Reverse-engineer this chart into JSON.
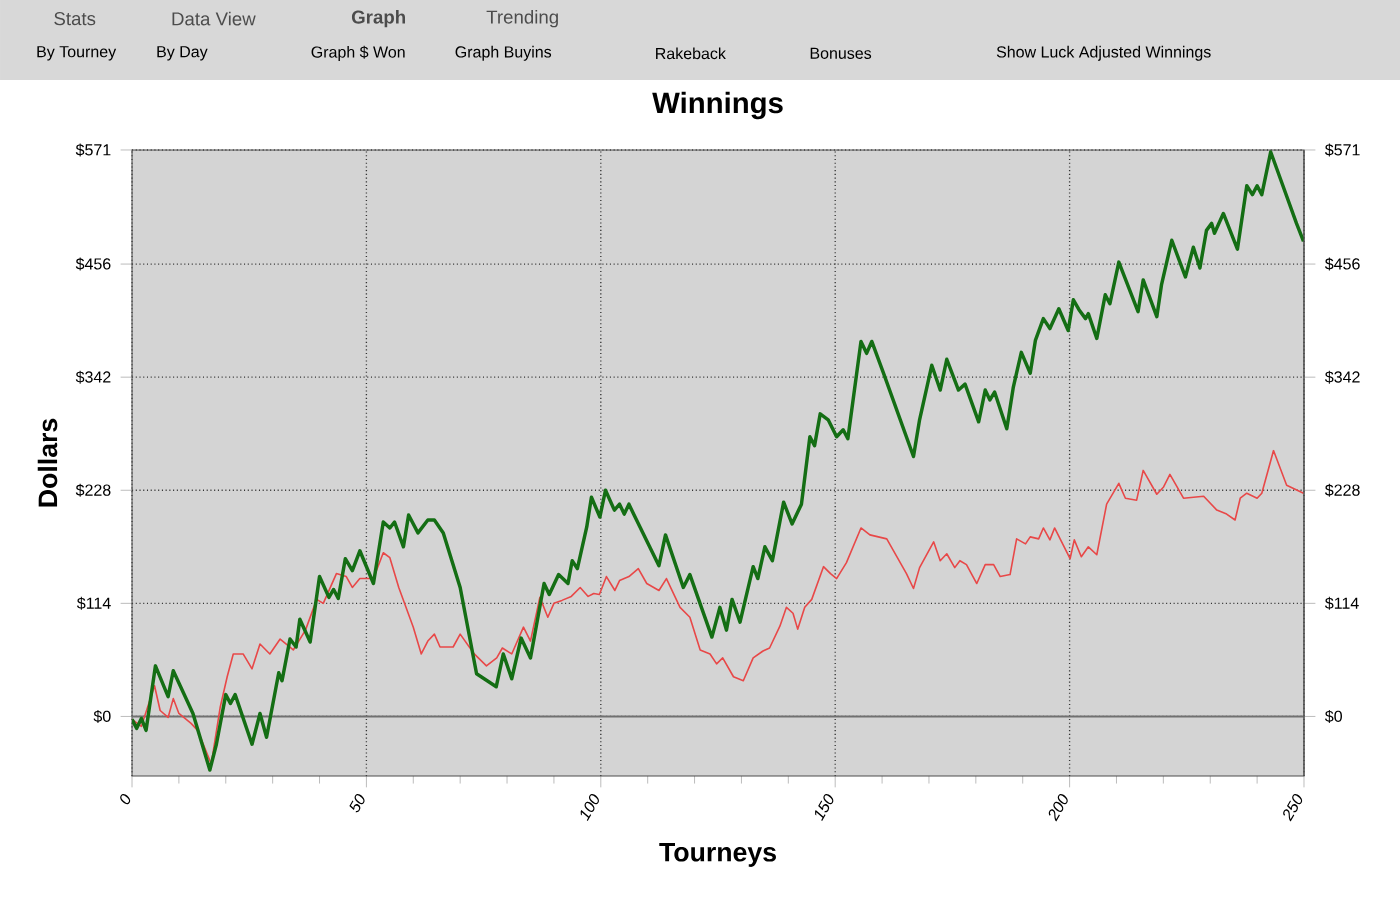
{
  "chart_data": {
    "type": "line",
    "title": "Winnings",
    "xlabel": "Tourneys",
    "ylabel": "Dollars",
    "annotations": [
      "Stats",
      "Data View",
      "Graph",
      "Trending",
      "By Tourney",
      "By Day",
      "Graph $ Won",
      "Graph Buyins",
      "Rakeback",
      "Bonuses",
      "Show Luck Adjusted Winnings"
    ],
    "xlim": [
      0,
      250
    ],
    "xticks": [
      0,
      50,
      100,
      150,
      200,
      250
    ],
    "ylim": [
      -60,
      571
    ],
    "yticks": [
      {
        "value": 0,
        "label": "$0"
      },
      {
        "value": 114,
        "label": "$114"
      },
      {
        "value": 228,
        "label": "$228"
      },
      {
        "value": 342,
        "label": "$342"
      },
      {
        "value": 456,
        "label": "$456"
      },
      {
        "value": 571,
        "label": "$571"
      }
    ],
    "y2lim": [
      -60,
      571
    ],
    "y2ticks": [
      {
        "value": 0,
        "label": "$0"
      },
      {
        "value": 114,
        "label": "$114"
      },
      {
        "value": 228,
        "label": "$228"
      },
      {
        "value": 342,
        "label": "$342"
      },
      {
        "value": 456,
        "label": "$456"
      },
      {
        "value": 571,
        "label": "$571"
      }
    ],
    "grid": true,
    "marker": "none",
    "line_style": "solid",
    "ref_lines": [
      {
        "axis": "y",
        "value": 0,
        "color": "#707070"
      }
    ],
    "series": [
      {
        "color": "#e84848",
        "x": [
          0,
          2,
          4.8,
          6,
          7.7,
          8.8,
          10,
          12.6,
          14,
          16.9,
          18.8,
          20.3,
          21.6,
          23.7,
          25.6,
          27.3,
          29.4,
          31.6,
          34.4,
          37,
          39.4,
          40.8,
          43.6,
          45.7,
          47,
          48.6,
          51.5,
          53.6,
          55,
          56.9,
          60,
          61.7,
          63.1,
          64.5,
          65.7,
          68.5,
          70,
          73,
          75.6,
          77.8,
          79,
          81,
          83.5,
          85,
          87,
          88.7,
          90,
          91.7,
          93.7,
          95.6,
          97.3,
          98.5,
          99.7,
          101.2,
          103,
          104,
          106,
          108,
          109.8,
          112.4,
          114,
          116.9,
          119,
          121.2,
          123.3,
          124.7,
          126,
          128.3,
          130.4,
          132.5,
          134.6,
          136,
          138.2,
          139.6,
          141,
          142,
          143.5,
          145,
          147.5,
          149,
          150.3,
          152.4,
          155.5,
          157.4,
          161,
          165.2,
          166.7,
          168,
          171,
          172.4,
          173.8,
          175.5,
          176.6,
          178,
          180.2,
          182,
          183.8,
          185.2,
          187.3,
          188.7,
          190.6,
          191.6,
          193.4,
          194.4,
          195.8,
          196.8,
          200.1,
          201,
          202.5,
          204,
          205.8,
          207.9,
          210.5,
          211.9,
          214.3,
          215.7,
          218.6,
          220,
          221.4,
          224.3,
          228.6,
          231.4,
          233.5,
          235.3,
          236.4,
          237.8,
          240,
          241,
          243.5,
          246.3,
          249.9
        ],
        "values": [
          -3,
          -10,
          31,
          6,
          -1,
          18,
          3,
          -7,
          -14,
          -48,
          9,
          40,
          63,
          63,
          48,
          73,
          63,
          78,
          67,
          87,
          118,
          114,
          144,
          141,
          130,
          139,
          139,
          165,
          160,
          130,
          90,
          63,
          76,
          83,
          70,
          70,
          83,
          63,
          51,
          59,
          69,
          63,
          90,
          76,
          120,
          100,
          114,
          117,
          121,
          130,
          121,
          124,
          123,
          141,
          127,
          137,
          141,
          149,
          134,
          127,
          139,
          110,
          100,
          67,
          63,
          53,
          59,
          40,
          36,
          59,
          66,
          69,
          91,
          110,
          104,
          88,
          110,
          118,
          151,
          144,
          139,
          155,
          190,
          183,
          179,
          144,
          129,
          150,
          176,
          157,
          164,
          150,
          157,
          153,
          134,
          153,
          153,
          141,
          143,
          179,
          174,
          181,
          179,
          190,
          178,
          190,
          159,
          178,
          161,
          171,
          163,
          214,
          235,
          220,
          218,
          248,
          224,
          231,
          244,
          220,
          222,
          208,
          204,
          198,
          220,
          225,
          220,
          225,
          268,
          233,
          225
        ]
      },
      {
        "color": "#146e14",
        "x": [
          0,
          1,
          2,
          3,
          5,
          7.7,
          8.8,
          13,
          16.6,
          18,
          20,
          21,
          22,
          25.6,
          27.3,
          28.7,
          31.3,
          32,
          33.7,
          35,
          35.8,
          38,
          40,
          42,
          43,
          44,
          45.5,
          47,
          48.6,
          51.5,
          53.6,
          55,
          56,
          57.9,
          59,
          61,
          63.1,
          64.5,
          66.4,
          70,
          73.5,
          77.7,
          79.2,
          81,
          83,
          85,
          87.9,
          89,
          91,
          93,
          93.9,
          95,
          97,
          98,
          99.8,
          101,
          102.9,
          104,
          105,
          106,
          107,
          112.4,
          113.8,
          117.6,
          119,
          123.7,
          125.4,
          126.8,
          128,
          129.7,
          132.5,
          133.5,
          135,
          136.6,
          139,
          140.8,
          142.8,
          144.6,
          145.6,
          146.8,
          148.5,
          150.3,
          151.7,
          152.7,
          155.5,
          156.7,
          157.8,
          160.3,
          166.7,
          168,
          170.6,
          172.4,
          173.8,
          176.3,
          177.7,
          180.6,
          182,
          183,
          184,
          186.6,
          188,
          189.7,
          191.6,
          192.7,
          194.4,
          195.8,
          197.7,
          199.7,
          200.8,
          202,
          203.4,
          204,
          205.8,
          207.6,
          208.6,
          210.5,
          214.6,
          215.7,
          218.6,
          219.6,
          221.8,
          224.7,
          226.4,
          227.8,
          229.2,
          230.3,
          230.9,
          232.8,
          235.8,
          237.8,
          239,
          240,
          241,
          242.9,
          248.4,
          249.9
        ],
        "values": [
          -3,
          -12,
          -2,
          -14,
          51,
          20,
          46,
          3,
          -54,
          -28,
          22,
          13,
          22,
          -28,
          3,
          -21,
          44,
          36,
          78,
          70,
          98,
          75,
          141,
          120,
          128,
          119,
          159,
          147,
          167,
          134,
          196,
          190,
          196,
          171,
          203,
          185,
          198,
          198,
          185,
          130,
          43,
          30,
          63,
          38,
          79,
          59,
          134,
          123,
          143,
          134,
          157,
          149,
          191,
          221,
          201,
          228,
          208,
          214,
          204,
          214,
          204,
          152,
          183,
          130,
          143,
          80,
          110,
          87,
          118,
          95,
          151,
          139,
          171,
          157,
          216,
          194,
          214,
          282,
          273,
          305,
          299,
          282,
          289,
          280,
          378,
          366,
          378,
          346,
          262,
          299,
          354,
          329,
          360,
          329,
          335,
          297,
          329,
          319,
          327,
          290,
          332,
          367,
          346,
          379,
          401,
          391,
          411,
          389,
          420,
          410,
          401,
          406,
          381,
          425,
          416,
          458,
          408,
          440,
          403,
          435,
          480,
          443,
          473,
          452,
          490,
          497,
          487,
          507,
          471,
          535,
          526,
          535,
          526,
          569,
          497,
          479
        ]
      }
    ]
  }
}
